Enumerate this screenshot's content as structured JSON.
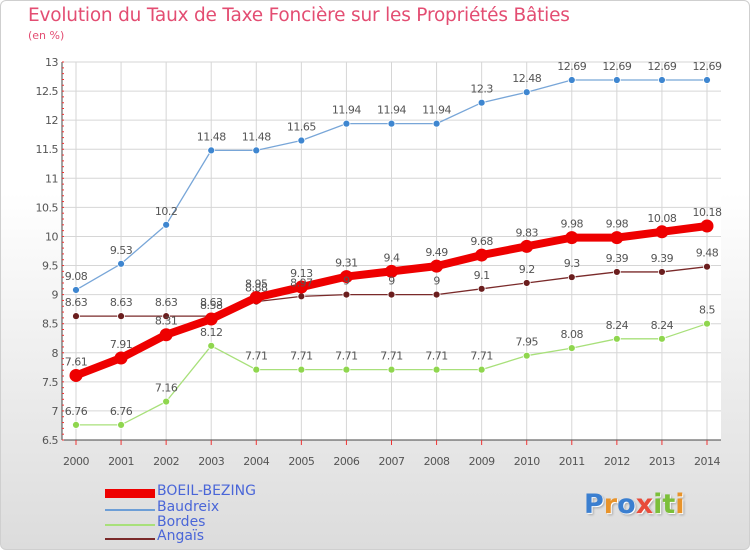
{
  "title": "Evolution du Taux de Taxe Foncière sur les Propriétés Bâties",
  "unit_label": "(en %)",
  "chart_data": {
    "type": "line",
    "title": "Evolution du Taux de Taxe Foncière sur les Propriétés Bâties",
    "ylabel": "(en %)",
    "xlabel": "",
    "x": [
      "2000",
      "2001",
      "2002",
      "2003",
      "2004",
      "2005",
      "2006",
      "2007",
      "2008",
      "2009",
      "2010",
      "2011",
      "2012",
      "2013",
      "2014"
    ],
    "ylim": [
      6.5,
      13
    ],
    "yticks": [
      "6.5",
      "7",
      "7.5",
      "8",
      "8.5",
      "9",
      "9.5",
      "10",
      "10.5",
      "11",
      "11.5",
      "12",
      "12.5",
      "13"
    ],
    "series": [
      {
        "name": "BOEIL-BEZING",
        "color": "#ee0000",
        "values": [
          7.61,
          7.91,
          8.31,
          8.58,
          8.95,
          9.13,
          9.31,
          9.4,
          9.49,
          9.68,
          9.83,
          9.98,
          9.98,
          10.08,
          10.18
        ],
        "labels": [
          "7.61",
          "7.91",
          "8.31",
          "8.58",
          "8.95",
          "9.13",
          "9.31",
          "9.4",
          "9.49",
          "9.68",
          "9.83",
          "9.98",
          "9.98",
          "10.08",
          "10.18"
        ]
      },
      {
        "name": "Baudreix",
        "color": "#6d9ed6",
        "values": [
          9.08,
          9.53,
          10.2,
          11.48,
          11.48,
          11.65,
          11.94,
          11.94,
          11.94,
          12.3,
          12.48,
          12.69,
          12.69,
          12.69,
          12.69
        ],
        "labels": [
          "9.08",
          "9.53",
          "10.2",
          "11.48",
          "11.48",
          "11.65",
          "11.94",
          "11.94",
          "11.94",
          "12.3",
          "12.48",
          "12.69",
          "12.69",
          "12.69",
          "12.69"
        ]
      },
      {
        "name": "Bordes",
        "color": "#a8e07a",
        "values": [
          6.76,
          6.76,
          7.16,
          8.12,
          7.71,
          7.71,
          7.71,
          7.71,
          7.71,
          7.71,
          7.95,
          8.08,
          8.24,
          8.24,
          8.5
        ],
        "labels": [
          "6.76",
          "6.76",
          "7.16",
          "8.12",
          "7.71",
          "7.71",
          "7.71",
          "7.71",
          "7.71",
          "7.71",
          "7.95",
          "8.08",
          "8.24",
          "8.24",
          "8.5"
        ]
      },
      {
        "name": "Angaïs",
        "color": "#7a2a2a",
        "values": [
          8.63,
          8.63,
          8.63,
          8.63,
          8.88,
          8.97,
          9.0,
          9.0,
          9.0,
          9.1,
          9.2,
          9.3,
          9.39,
          9.39,
          9.48
        ],
        "labels": [
          "8.63",
          "8.63",
          "8.63",
          "8.63",
          "8.88",
          "8.97",
          "9",
          "9",
          "9",
          "9.1",
          "9.2",
          "9.3",
          "9.39",
          "9.39",
          "9.48"
        ]
      }
    ]
  },
  "legend": [
    {
      "label": "BOEIL-BEZING",
      "color": "#ee0000"
    },
    {
      "label": "Baudreix",
      "color": "#6d9ed6"
    },
    {
      "label": "Bordes",
      "color": "#a8e07a"
    },
    {
      "label": "Angaïs",
      "color": "#7a2a2a"
    }
  ],
  "logo": {
    "letters": [
      "P",
      "r",
      "o",
      "x",
      "i",
      "t",
      "i"
    ],
    "colors": [
      "#3b7fd0",
      "#e8932a",
      "#3b7fd0",
      "#e84b3a",
      "#7cbf3a",
      "#7cbf3a",
      "#e8932a"
    ]
  }
}
